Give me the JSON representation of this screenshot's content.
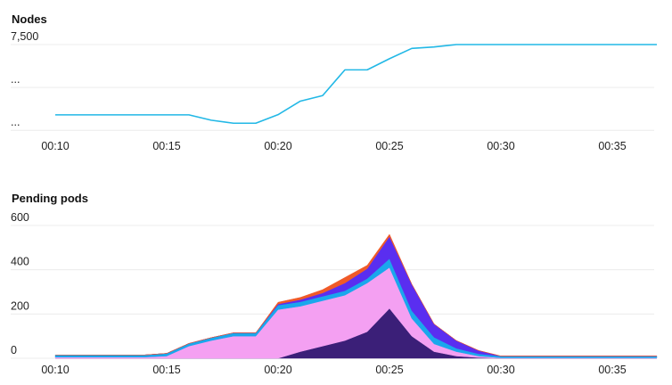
{
  "charts": [
    {
      "id": "nodes",
      "chart_data": {
        "type": "line",
        "title": "Nodes",
        "xlabel": "",
        "ylabel": "",
        "x_ticks": [
          "00:10",
          "00:15",
          "00:20",
          "00:25",
          "00:30",
          "00:35"
        ],
        "y_ticks": [
          "7,500",
          "...",
          "..."
        ],
        "y_tick_values": [
          7500,
          5500,
          3500
        ],
        "ylim": [
          3300,
          7500
        ],
        "x": [
          10,
          11,
          12,
          13,
          14,
          15,
          16,
          17,
          18,
          19,
          20,
          21,
          22,
          23,
          24,
          25,
          26,
          27,
          28,
          29,
          30,
          31,
          32,
          33,
          34,
          35,
          36,
          37
        ],
        "series": [
          {
            "color": "#22b8e6",
            "values": [
              4220,
              4220,
              4220,
              4220,
              4220,
              4220,
              4220,
              3970,
              3830,
              3830,
              4230,
              4860,
              5120,
              6320,
              6320,
              6840,
              7320,
              7390,
              7500,
              7500,
              7500,
              7500,
              7500,
              7500,
              7500,
              7500,
              7500,
              7500
            ]
          }
        ],
        "grid": true,
        "legend": "none"
      }
    },
    {
      "id": "pending",
      "chart_data": {
        "type": "area",
        "stacked": true,
        "title": "Pending pods",
        "xlabel": "",
        "ylabel": "",
        "x_ticks": [
          "00:10",
          "00:15",
          "00:20",
          "00:25",
          "00:30",
          "00:35"
        ],
        "y_ticks": [
          "600",
          "400",
          "200",
          "0"
        ],
        "y_tick_values": [
          600,
          400,
          200,
          0
        ],
        "ylim": [
          0,
          600
        ],
        "x": [
          10,
          11,
          12,
          13,
          14,
          15,
          16,
          17,
          18,
          19,
          20,
          21,
          22,
          23,
          24,
          25,
          26,
          27,
          28,
          29,
          30,
          31,
          32,
          33,
          34,
          35,
          36,
          37
        ],
        "series": [
          {
            "color": "#3b1f78",
            "values": [
              0,
              0,
              0,
              0,
              0,
              0,
              0,
              0,
              0,
              0,
              0,
              30,
              55,
              80,
              120,
              225,
              100,
              30,
              10,
              3,
              0,
              0,
              0,
              0,
              0,
              0,
              0,
              0
            ]
          },
          {
            "color": "#f4a0f2",
            "values": [
              5,
              5,
              5,
              5,
              5,
              10,
              55,
              80,
              100,
              100,
              220,
              205,
              205,
              205,
              220,
              185,
              80,
              35,
              20,
              7,
              2,
              2,
              2,
              2,
              2,
              2,
              2,
              2
            ]
          },
          {
            "color": "#1aa7ec",
            "values": [
              10,
              10,
              10,
              10,
              10,
              12,
              12,
              13,
              15,
              15,
              20,
              20,
              20,
              20,
              20,
              40,
              35,
              30,
              15,
              10,
              8,
              8,
              8,
              8,
              8,
              8,
              8,
              8
            ]
          },
          {
            "color": "#5a2ef0",
            "values": [
              0,
              0,
              0,
              0,
              0,
              0,
              0,
              0,
              0,
              0,
              5,
              10,
              15,
              35,
              45,
              100,
              120,
              60,
              35,
              15,
              0,
              0,
              0,
              0,
              0,
              0,
              0,
              0
            ]
          },
          {
            "color": "#f05a28",
            "values": [
              0,
              0,
              0,
              0,
              0,
              0,
              0,
              0,
              0,
              0,
              8,
              10,
              15,
              25,
              15,
              10,
              0,
              0,
              0,
              0,
              0,
              0,
              0,
              0,
              0,
              0,
              0,
              0
            ]
          }
        ],
        "grid": true,
        "legend": "none"
      }
    }
  ]
}
